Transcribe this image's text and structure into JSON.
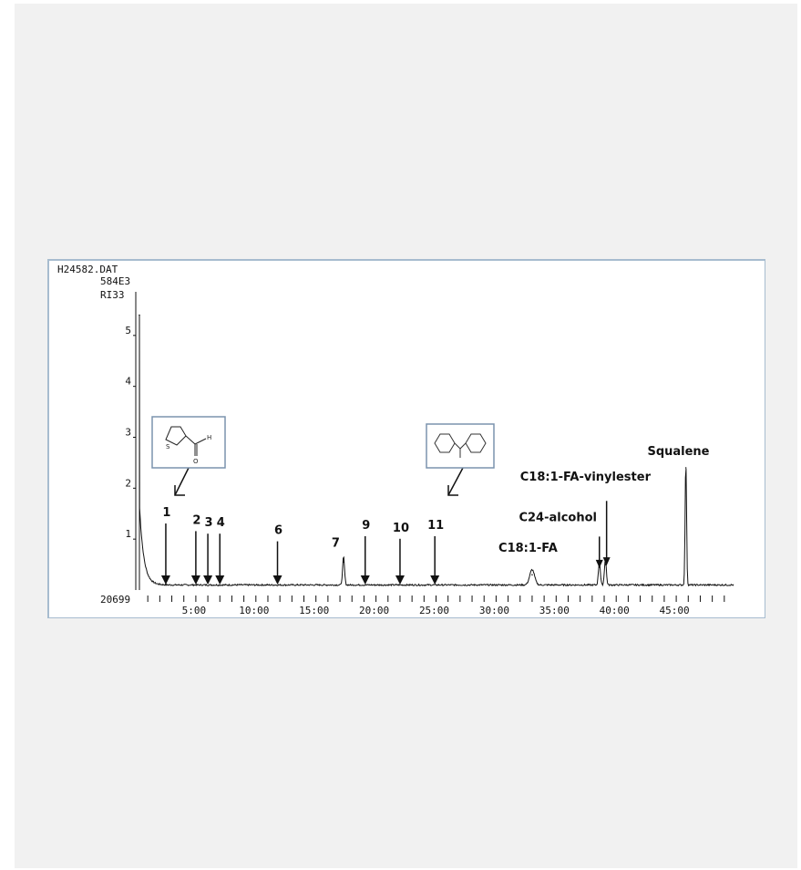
{
  "chart_data": {
    "type": "line",
    "file_label": "H24582.DAT",
    "scale_label": "584E3",
    "ylabel": "RI33",
    "baseline_label": "20699",
    "xlabel": "",
    "xlim": [
      0,
      50
    ],
    "ylim": [
      0,
      6
    ],
    "x_ticks": [
      "5:00",
      "10:00",
      "15:00",
      "20:00",
      "25:00",
      "30:00",
      "35:00",
      "40:00",
      "45:00"
    ],
    "x_tick_values": [
      5,
      10,
      15,
      20,
      25,
      30,
      35,
      40,
      45
    ],
    "y_ticks": [
      "1",
      "2",
      "3",
      "4",
      "5"
    ],
    "y_tick_values": [
      1,
      2,
      3,
      4,
      5
    ],
    "peaks": [
      {
        "t": 0.3,
        "h": 5.4,
        "w": 0.05
      },
      {
        "t": 17.3,
        "h": 0.55,
        "w": 0.08
      },
      {
        "t": 33.0,
        "h": 0.3,
        "w": 0.2
      },
      {
        "t": 38.6,
        "h": 0.45,
        "w": 0.08
      },
      {
        "t": 39.1,
        "h": 0.5,
        "w": 0.08
      },
      {
        "t": 45.8,
        "h": 2.4,
        "w": 0.06
      }
    ],
    "arrows": [
      {
        "label": "1",
        "t": 2.5,
        "y_label": 1.45,
        "y_head": 0.0
      },
      {
        "label": "2",
        "t": 5.0,
        "y_label": 1.3,
        "y_head": 0.0
      },
      {
        "label": "3",
        "t": 6.0,
        "y_label": 1.25,
        "y_head": 0.0
      },
      {
        "label": "4",
        "t": 7.0,
        "y_label": 1.25,
        "y_head": 0.0
      },
      {
        "label": "6",
        "t": 11.8,
        "y_label": 1.1,
        "y_head": 0.0
      },
      {
        "label": "9",
        "t": 19.1,
        "y_label": 1.2,
        "y_head": 0.0
      },
      {
        "label": "10",
        "t": 22.0,
        "y_label": 1.15,
        "y_head": 0.0
      },
      {
        "label": "11",
        "t": 24.9,
        "y_label": 1.2,
        "y_head": 0.0
      }
    ],
    "annotations": [
      {
        "text": "7",
        "t": 16.3,
        "y": 0.85
      },
      {
        "text": "C18:1-FA",
        "t": 30.2,
        "y": 0.75
      },
      {
        "text": "C24-alcohol",
        "t": 31.9,
        "y": 1.35
      },
      {
        "text": "C18:1-FA-vinylester",
        "t": 32.0,
        "y": 2.15
      },
      {
        "text": "Squalene",
        "t": 42.6,
        "y": 2.65
      }
    ]
  }
}
